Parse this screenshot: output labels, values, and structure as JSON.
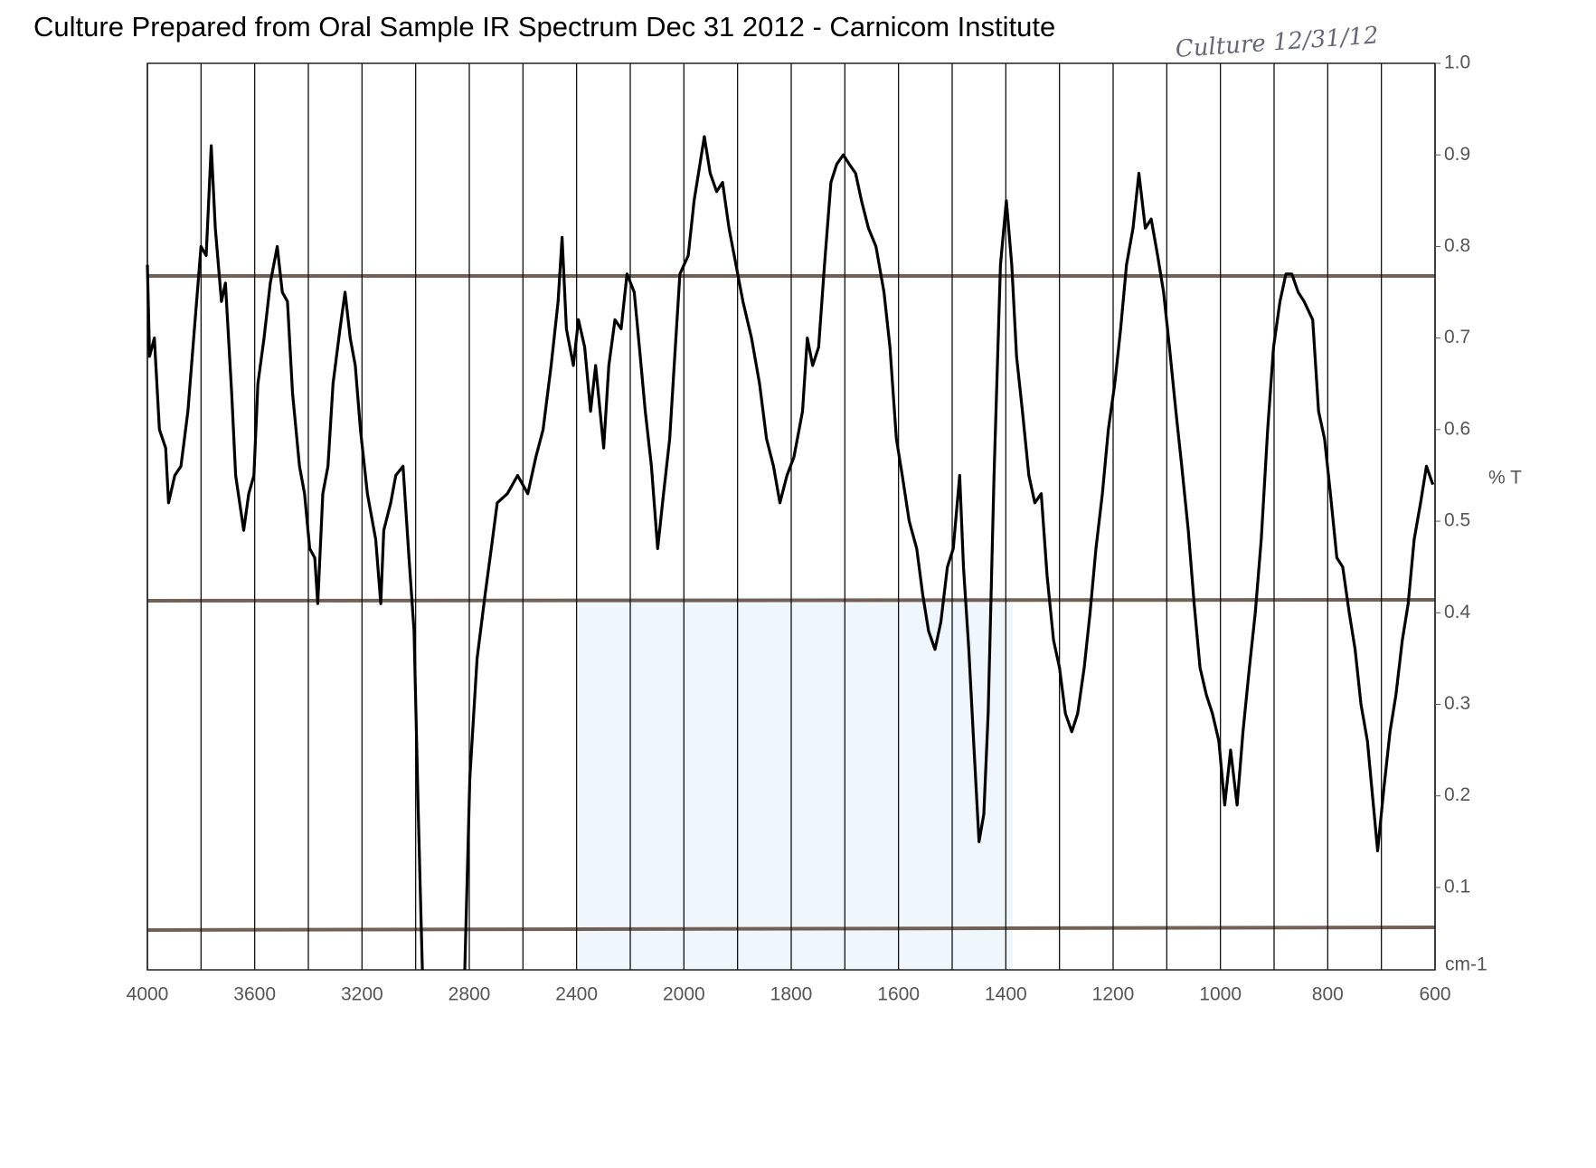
{
  "chart_data": {
    "type": "line",
    "title": "Culture Prepared from Oral Sample IR Spectrum Dec 31 2012 - Carnicom Institute",
    "annotation": "Culture 12/31/12",
    "ylabel": "% T",
    "xlabel": "cm-1",
    "color": "#000000",
    "xlim": [
      4000,
      600
    ],
    "ylim": [
      0.01,
      1
    ],
    "xticks": [
      4000,
      3600,
      3200,
      2800,
      2400,
      2000,
      1800,
      1600,
      1400,
      1200,
      1000,
      800,
      600
    ],
    "xgrid": [
      4000,
      3800,
      3600,
      3400,
      3200,
      3000,
      2800,
      2600,
      2400,
      2200,
      2000,
      1900,
      1800,
      1700,
      1600,
      1500,
      1400,
      1300,
      1200,
      1100,
      1000,
      900,
      800,
      700,
      600
    ],
    "yticks": [
      {
        "value": 1,
        "label": "1.0"
      },
      0.9,
      0.8,
      0.7,
      0.6,
      0.5,
      0.4,
      0.3,
      0.2,
      0.1
    ],
    "x": [
      4000,
      3992,
      3974,
      3955,
      3932,
      3921,
      3898,
      3875,
      3849,
      3822,
      3800,
      3781,
      3762,
      3747,
      3724,
      3709,
      3686,
      3671,
      3641,
      3622,
      3603,
      3588,
      3565,
      3542,
      3516,
      3497,
      3478,
      3459,
      3433,
      3414,
      3395,
      3376,
      3365,
      3346,
      3327,
      3308,
      3282,
      3263,
      3244,
      3225,
      3206,
      3180,
      3149,
      3130,
      3119,
      3093,
      3074,
      3047,
      3025,
      3006,
      2990,
      2975,
      2900,
      2817,
      2798,
      2771,
      2741,
      2718,
      2696,
      2658,
      2620,
      2582,
      2552,
      2525,
      2495,
      2469,
      2454,
      2438,
      2412,
      2393,
      2370,
      2348,
      2329,
      2299,
      2280,
      2257,
      2234,
      2212,
      2185,
      2166,
      2144,
      2121,
      2098,
      2076,
      2053,
      2034,
      2015,
      1992,
      1981,
      1970,
      1962,
      1951,
      1939,
      1928,
      1916,
      1903,
      1890,
      1874,
      1859,
      1846,
      1833,
      1821,
      1808,
      1795,
      1779,
      1770,
      1760,
      1749,
      1738,
      1726,
      1715,
      1703,
      1692,
      1680,
      1669,
      1656,
      1642,
      1627,
      1616,
      1604,
      1593,
      1580,
      1566,
      1555,
      1544,
      1532,
      1521,
      1509,
      1498,
      1486,
      1479,
      1469,
      1460,
      1450,
      1441,
      1433,
      1422,
      1410,
      1399,
      1389,
      1380,
      1369,
      1357,
      1346,
      1334,
      1323,
      1311,
      1300,
      1289,
      1277,
      1266,
      1254,
      1243,
      1232,
      1220,
      1209,
      1197,
      1186,
      1175,
      1163,
      1152,
      1140,
      1129,
      1117,
      1106,
      1095,
      1083,
      1072,
      1060,
      1049,
      1038,
      1026,
      1015,
      1003,
      992,
      981,
      969,
      958,
      946,
      935,
      924,
      912,
      901,
      889,
      878,
      867,
      855,
      844,
      828,
      817,
      806,
      795,
      783,
      772,
      760,
      749,
      738,
      726,
      715,
      707,
      695,
      684,
      673,
      661,
      650,
      639,
      627,
      616,
      604
    ],
    "values": [
      0.78,
      0.68,
      0.7,
      0.6,
      0.58,
      0.52,
      0.55,
      0.56,
      0.62,
      0.72,
      0.8,
      0.79,
      0.91,
      0.82,
      0.74,
      0.76,
      0.64,
      0.55,
      0.49,
      0.53,
      0.55,
      0.65,
      0.7,
      0.76,
      0.8,
      0.75,
      0.74,
      0.64,
      0.56,
      0.53,
      0.47,
      0.46,
      0.41,
      0.53,
      0.56,
      0.65,
      0.71,
      0.75,
      0.7,
      0.67,
      0.6,
      0.53,
      0.48,
      0.41,
      0.49,
      0.52,
      0.55,
      0.56,
      0.46,
      0.38,
      0.18,
      0.01,
      null,
      0.01,
      0.22,
      0.35,
      0.42,
      0.47,
      0.52,
      0.53,
      0.55,
      0.53,
      0.57,
      0.6,
      0.67,
      0.74,
      0.81,
      0.71,
      0.67,
      0.72,
      0.69,
      0.62,
      0.67,
      0.58,
      0.67,
      0.72,
      0.71,
      0.77,
      0.75,
      0.69,
      0.62,
      0.56,
      0.47,
      0.53,
      0.59,
      0.68,
      0.77,
      0.79,
      0.85,
      0.89,
      0.92,
      0.88,
      0.86,
      0.87,
      0.82,
      0.78,
      0.74,
      0.7,
      0.65,
      0.59,
      0.56,
      0.52,
      0.55,
      0.57,
      0.62,
      0.7,
      0.67,
      0.69,
      0.78,
      0.87,
      0.89,
      0.9,
      0.89,
      0.88,
      0.85,
      0.82,
      0.8,
      0.75,
      0.69,
      0.59,
      0.55,
      0.5,
      0.47,
      0.42,
      0.38,
      0.36,
      0.39,
      0.45,
      0.47,
      0.55,
      0.45,
      0.36,
      0.26,
      0.15,
      0.18,
      0.29,
      0.55,
      0.78,
      0.85,
      0.78,
      0.68,
      0.62,
      0.55,
      0.52,
      0.53,
      0.44,
      0.37,
      0.34,
      0.29,
      0.27,
      0.29,
      0.34,
      0.4,
      0.47,
      0.53,
      0.6,
      0.65,
      0.71,
      0.78,
      0.82,
      0.88,
      0.82,
      0.83,
      0.79,
      0.75,
      0.69,
      0.62,
      0.56,
      0.49,
      0.41,
      0.34,
      0.31,
      0.29,
      0.26,
      0.19,
      0.25,
      0.19,
      0.27,
      0.34,
      0.4,
      0.48,
      0.6,
      0.69,
      0.74,
      0.77,
      0.77,
      0.75,
      0.74,
      0.72,
      0.62,
      0.59,
      0.53,
      0.46,
      0.45,
      0.4,
      0.36,
      0.3,
      0.26,
      0.19,
      0.14,
      0.21,
      0.27,
      0.31,
      0.37,
      0.41,
      0.48,
      0.52,
      0.56,
      0.54
    ]
  }
}
